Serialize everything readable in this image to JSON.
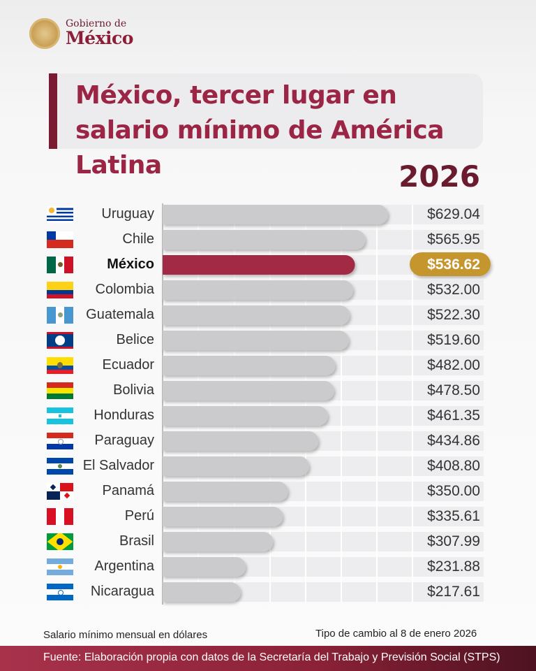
{
  "brand": {
    "small": "Gobierno de",
    "big": "México"
  },
  "title": "México, tercer lugar en salario mínimo de América Latina",
  "year": "2026",
  "footer": {
    "left": "Salario mínimo mensual en dólares",
    "right": "Tipo de cambio al 8 de enero 2026",
    "source": "Fuente: Elaboración propia con datos de la Secretaría del Trabajo y Previsión Social (STPS)"
  },
  "colors": {
    "accent": "#9b2544",
    "highlight_bar": "#a32a44",
    "highlight_pill": "#c6962f",
    "bar": "#cbcbcd",
    "row_bg": "#ededef"
  },
  "chart_data": {
    "type": "bar",
    "orientation": "horizontal",
    "categories": [
      "Uruguay",
      "Chile",
      "México",
      "Colombia",
      "Guatemala",
      "Belice",
      "Ecuador",
      "Bolivia",
      "Honduras",
      "Paraguay",
      "El Salvador",
      "Panamá",
      "Perú",
      "Brasil",
      "Argentina",
      "Nicaragua"
    ],
    "values": [
      629.04,
      565.95,
      536.62,
      532.0,
      522.3,
      519.6,
      482.0,
      478.5,
      461.35,
      434.86,
      408.8,
      350.0,
      335.61,
      307.99,
      231.88,
      217.61
    ],
    "labels": [
      "$629.04",
      "$565.95",
      "$536.62",
      "$532.00",
      "$522.30",
      "$519.60",
      "$482.00",
      "$478.50",
      "$461.35",
      "$434.86",
      "$408.80",
      "$350.00",
      "$335.61",
      "$307.99",
      "$231.88",
      "$217.61"
    ],
    "highlight": "México",
    "flags": [
      "uruguay-flag",
      "chile-flag",
      "mexico-flag",
      "colombia-flag",
      "guatemala-flag",
      "belize-flag",
      "ecuador-flag",
      "bolivia-flag",
      "honduras-flag",
      "paraguay-flag",
      "el-salvador-flag",
      "panama-flag",
      "peru-flag",
      "brazil-flag",
      "argentina-flag",
      "nicaragua-flag"
    ],
    "xlim": [
      0,
      650
    ],
    "grid": true
  }
}
